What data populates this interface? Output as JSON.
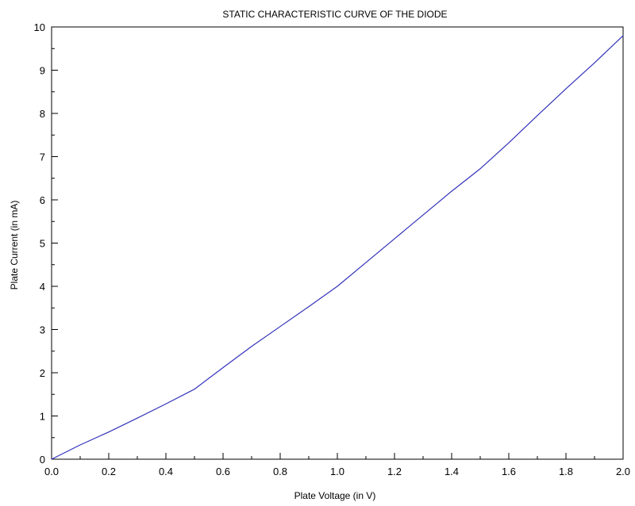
{
  "chart_data": {
    "type": "line",
    "title": "STATIC CHARACTERISTIC CURVE OF THE DIODE",
    "xlabel": "Plate Voltage (in V)",
    "ylabel": "Plate Current (in mA)",
    "xlim": [
      0,
      2
    ],
    "ylim": [
      0,
      10
    ],
    "xticks": [
      "0.0",
      "0.2",
      "0.4",
      "0.6",
      "0.8",
      "1.0",
      "1.2",
      "1.4",
      "1.6",
      "1.8",
      "2.0"
    ],
    "yticks": [
      "0",
      "1",
      "2",
      "3",
      "4",
      "5",
      "6",
      "7",
      "8",
      "9",
      "10"
    ],
    "grid": false,
    "line_color": "#3333bb",
    "series": [
      {
        "x": [
          0.0,
          0.1,
          0.2,
          0.3,
          0.4,
          0.5,
          0.6,
          0.7,
          0.8,
          0.9,
          1.0,
          1.1,
          1.2,
          1.3,
          1.4,
          1.5,
          1.6,
          1.7,
          1.8,
          1.9,
          2.0
        ],
        "y": [
          0.0,
          0.33,
          0.63,
          0.95,
          1.28,
          1.62,
          2.12,
          2.61,
          3.07,
          3.53,
          4.0,
          4.55,
          5.1,
          5.65,
          6.2,
          6.72,
          7.32,
          7.95,
          8.57,
          9.17,
          9.8
        ]
      }
    ]
  }
}
